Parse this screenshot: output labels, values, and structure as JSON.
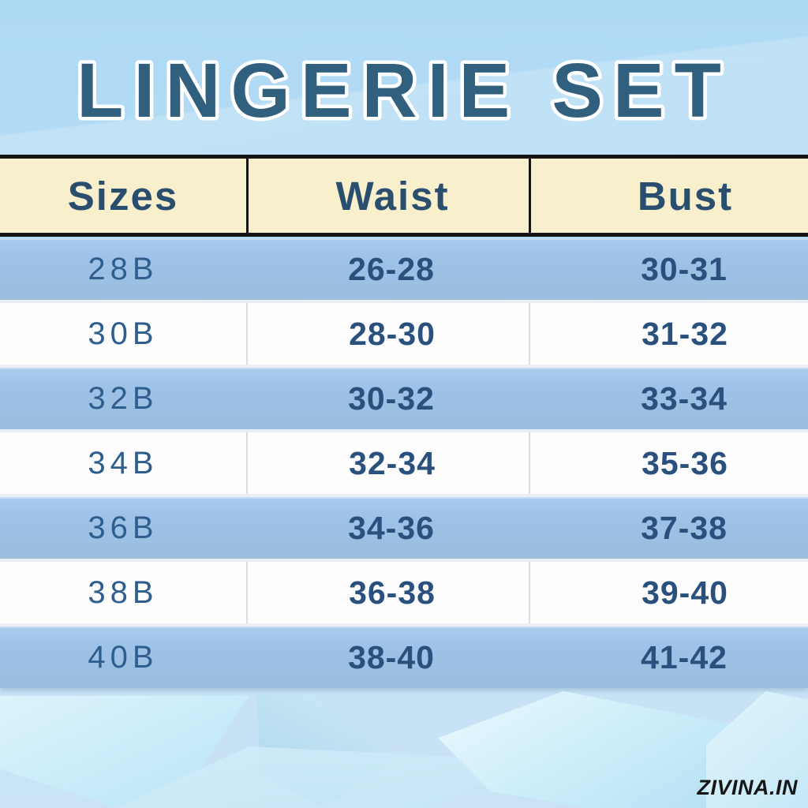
{
  "title": "LINGERIE SET",
  "watermark": "ZIVINA.IN",
  "colors": {
    "title_text": "#31607f",
    "title_outline": "#ffffff",
    "header_bg": "#f8efcd",
    "header_text": "#2a4e6e",
    "row_blue": "#9ec2e8",
    "row_white": "#fdfdfe",
    "cell_text": "#2a517d",
    "table_border": "#141414",
    "background_top": "#aed9f5",
    "background_bottom": "#c9e3f4"
  },
  "chart_data": {
    "type": "table",
    "title": "LINGERIE SET",
    "columns": [
      "Sizes",
      "Waist",
      "Bust"
    ],
    "rows": [
      [
        "28B",
        "26-28",
        "30-31"
      ],
      [
        "30B",
        "28-30",
        "31-32"
      ],
      [
        "32B",
        "30-32",
        "33-34"
      ],
      [
        "34B",
        "32-34",
        "35-36"
      ],
      [
        "36B",
        "34-36",
        "37-38"
      ],
      [
        "38B",
        "36-38",
        "39-40"
      ],
      [
        "40B",
        "38-40",
        "41-42"
      ]
    ]
  }
}
